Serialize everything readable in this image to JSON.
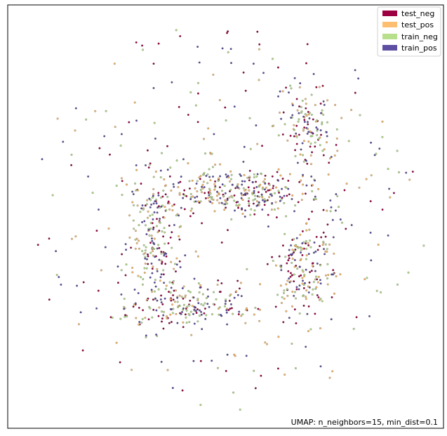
{
  "chart_data": {
    "type": "scatter",
    "title": "",
    "xlabel": "",
    "ylabel": "",
    "xlim": [
      -10,
      10
    ],
    "ylim": [
      -10,
      10
    ],
    "grid": false,
    "axes_ticks": false,
    "legend_placement": "top-right",
    "annotation": "UMAP: n_neighbors=15, min_dist=0.1",
    "series": [
      {
        "name": "test_neg",
        "color": "#9e0142",
        "count": 320
      },
      {
        "name": "test_pos",
        "color": "#fdbf6f",
        "count": 320
      },
      {
        "name": "train_neg",
        "color": "#b8e08c",
        "count": 340
      },
      {
        "name": "train_pos",
        "color": "#5e4fa2",
        "count": 320
      }
    ],
    "clusters": [
      {
        "label": "upper-center arm",
        "cx": 0.5,
        "cy": 1.2,
        "sx": 1.9,
        "sy": 0.6
      },
      {
        "label": "left arc",
        "cx": -3.3,
        "cy": -1.5,
        "sx": 0.7,
        "sy": 2.0
      },
      {
        "label": "lower arc",
        "cx": -1.5,
        "cy": -4.2,
        "sx": 1.5,
        "sy": 0.5
      },
      {
        "label": "right-lower cluster",
        "cx": 3.6,
        "cy": -2.4,
        "sx": 0.8,
        "sy": 1.2
      },
      {
        "label": "upper-right cluster",
        "cx": 3.8,
        "cy": 4.4,
        "sx": 0.6,
        "sy": 0.8
      },
      {
        "label": "diffuse halo",
        "cx": 0,
        "cy": 0,
        "sx": 6.0,
        "sy": 6.0
      }
    ]
  }
}
